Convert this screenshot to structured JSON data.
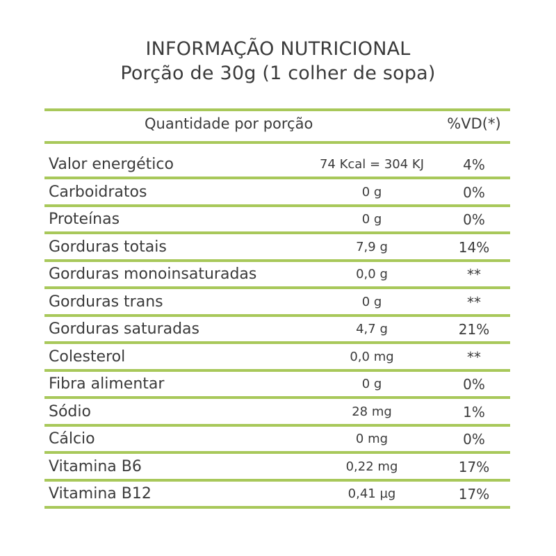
{
  "title_line1": "INFORMAÇÃO NUTRICIONAL",
  "title_line2": "Porção de 30g (1 colher de sopa)",
  "header": {
    "quantity_label": "Quantidade por porção",
    "vd_label": "%VD(*)"
  },
  "rows": [
    {
      "name": "Valor energético",
      "amount": "74 Kcal = 304 KJ",
      "vd": "4%"
    },
    {
      "name": "Carboidratos",
      "amount": "0 g",
      "vd": "0%"
    },
    {
      "name": "Proteínas",
      "amount": "0 g",
      "vd": "0%"
    },
    {
      "name": "Gorduras totais",
      "amount": "7,9 g",
      "vd": "14%"
    },
    {
      "name": "Gorduras monoinsaturadas",
      "amount": "0,0 g",
      "vd": "**"
    },
    {
      "name": "Gorduras trans",
      "amount": "0 g",
      "vd": "**"
    },
    {
      "name": "Gorduras saturadas",
      "amount": "4,7 g",
      "vd": "21%"
    },
    {
      "name": "Colesterol",
      "amount": "0,0 mg",
      "vd": "**"
    },
    {
      "name": "Fibra alimentar",
      "amount": "0 g",
      "vd": "0%"
    },
    {
      "name": "Sódio",
      "amount": "28 mg",
      "vd": "1%"
    },
    {
      "name": "Cálcio",
      "amount": "0 mg",
      "vd": "0%"
    },
    {
      "name": "Vitamina B6",
      "amount": "0,22 mg",
      "vd": "17%"
    },
    {
      "name": "Vitamina B12",
      "amount": "0,41 µg",
      "vd": "17%"
    }
  ],
  "colors": {
    "divider": "#a8c85a",
    "text": "#3a3a3a"
  }
}
